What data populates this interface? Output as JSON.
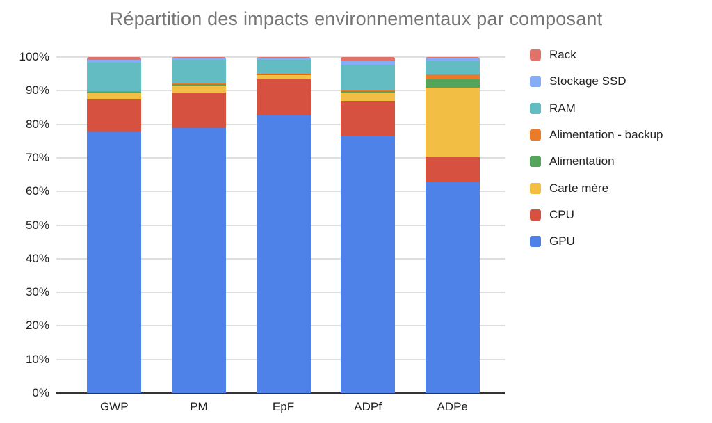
{
  "title": "Répartition des impacts environnementaux par composant",
  "colors": {
    "title_text": "#757575",
    "axis_text": "#1f1f1f",
    "gridline": "#dedede",
    "axis_line": "#333333",
    "background": "#ffffff"
  },
  "chart_data": {
    "type": "bar",
    "subtype": "stacked-100-percent",
    "title": "Répartition des impacts environnementaux par composant",
    "xlabel": "",
    "ylabel": "",
    "ylim": [
      0,
      100
    ],
    "grid": true,
    "legend_position": "right",
    "categories": [
      "GWP",
      "PM",
      "EpF",
      "ADPf",
      "ADPe"
    ],
    "y_ticks": [
      "0%",
      "10%",
      "20%",
      "30%",
      "40%",
      "50%",
      "60%",
      "70%",
      "80%",
      "90%",
      "100%"
    ],
    "series": [
      {
        "name": "GPU",
        "color": "#4e82e9",
        "values": [
          77.6,
          78.8,
          82.6,
          76.7,
          62.7
        ]
      },
      {
        "name": "CPU",
        "color": "#d65140",
        "values": [
          9.8,
          10.6,
          10.8,
          10.2,
          7.5
        ]
      },
      {
        "name": "Carte mère",
        "color": "#f2bf44",
        "values": [
          1.9,
          2.0,
          1.4,
          2.5,
          20.7
        ]
      },
      {
        "name": "Alimentation",
        "color": "#55a45c",
        "values": [
          0.5,
          0.6,
          0.1,
          0.6,
          2.5
        ]
      },
      {
        "name": "Alimentation - backup",
        "color": "#ec7b29",
        "values": [
          0.1,
          0.1,
          0.1,
          0.1,
          1.4
        ]
      },
      {
        "name": "RAM",
        "color": "#62bcc1",
        "values": [
          8.5,
          7.0,
          4.2,
          7.6,
          4.2
        ]
      },
      {
        "name": "Stockage SSD",
        "color": "#85acf7",
        "values": [
          0.8,
          0.5,
          0.7,
          1.1,
          0.9
        ]
      },
      {
        "name": "Rack",
        "color": "#e0726a",
        "values": [
          0.8,
          0.4,
          0.1,
          1.2,
          0.1
        ]
      }
    ],
    "legend": [
      "Rack",
      "Stockage SSD",
      "RAM",
      "Alimentation - backup",
      "Alimentation",
      "Carte mère",
      "CPU",
      "GPU"
    ]
  }
}
